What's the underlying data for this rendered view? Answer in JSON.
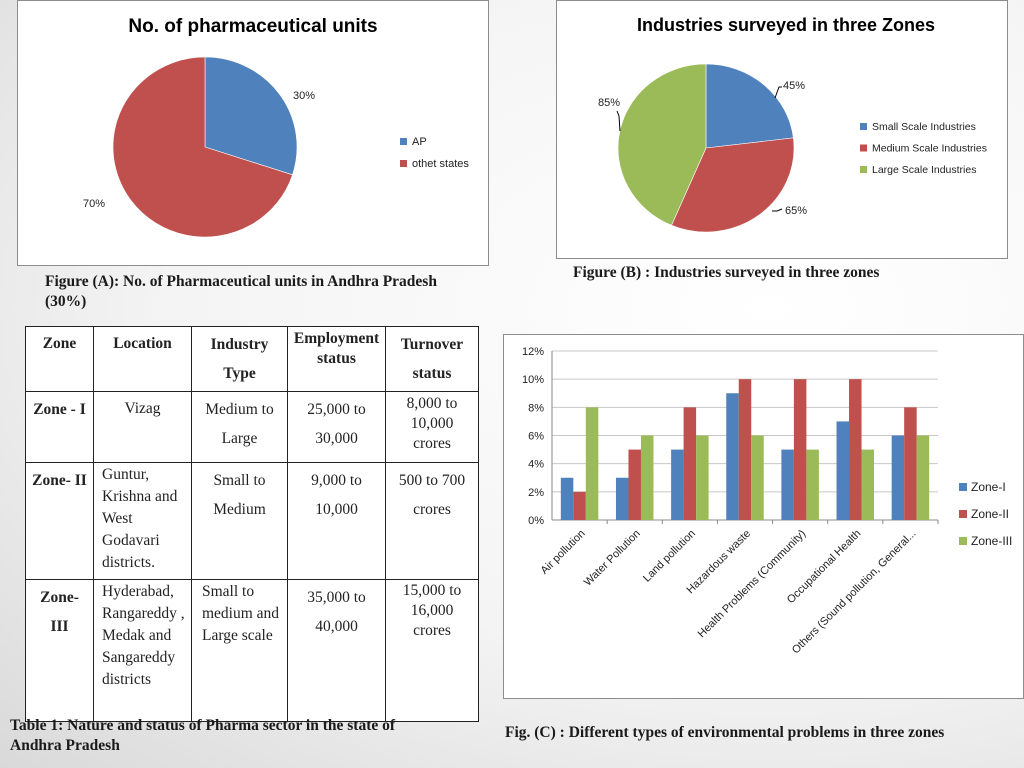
{
  "chart_data": [
    {
      "type": "pie",
      "title": "No. of pharmaceutical units",
      "categories": [
        "AP",
        "othet states"
      ],
      "values": [
        30,
        70
      ],
      "data_labels": [
        "30%",
        "70%"
      ],
      "colors": [
        "#4f81bd",
        "#c0504d"
      ],
      "legend": "right"
    },
    {
      "type": "pie",
      "title": "Industries surveyed in three Zones",
      "categories": [
        "Small Scale Industries",
        "Medium Scale Industries",
        "Large Scale Industries"
      ],
      "values": [
        45,
        65,
        85
      ],
      "data_labels": [
        "45%",
        "65%",
        "85%"
      ],
      "colors": [
        "#4f81bd",
        "#c0504d",
        "#9bbb59"
      ],
      "legend": "right"
    },
    {
      "type": "bar",
      "title": "",
      "categories": [
        "Air pollution",
        "Water Pollution",
        "Land pollution",
        "Hazardous waste",
        "Health Problems (Community)",
        "Occupational Health",
        "Others (Sound pollution, General..."
      ],
      "series": [
        {
          "name": "Zone-I",
          "values": [
            3,
            3,
            5,
            9,
            5,
            7,
            6
          ],
          "color": "#4f81bd"
        },
        {
          "name": "Zone-II",
          "values": [
            2,
            5,
            8,
            10,
            10,
            10,
            8
          ],
          "color": "#c0504d"
        },
        {
          "name": "Zone-III",
          "values": [
            8,
            6,
            6,
            6,
            5,
            5,
            6
          ],
          "color": "#9bbb59"
        }
      ],
      "yticks": [
        "0%",
        "2%",
        "4%",
        "6%",
        "8%",
        "10%",
        "12%"
      ],
      "ylim": [
        0,
        12
      ],
      "grid": true,
      "legend": "right"
    }
  ],
  "captions": {
    "fig_a": "Figure (A): No. of Pharmaceutical units in  Andhra Pradesh (30%)",
    "fig_b": "Figure (B) : Industries surveyed in three zones",
    "fig_c": "Fig. (C) : Different types of environmental problems in three zones",
    "table": "Table 1: Nature and status of Pharma sector in the state of Andhra Pradesh"
  },
  "table": {
    "headers": [
      "Zone",
      "Location",
      "Industry Type",
      "Employment status",
      "Turnover status"
    ],
    "rows": [
      [
        "Zone - I",
        "Vizag",
        "Medium to Large",
        "25,000 to 30,000",
        "8,000 to 10,000 crores"
      ],
      [
        "Zone- II",
        "Guntur, Krishna and West Godavari districts.",
        "Small to Medium",
        "9,000 to 10,000",
        "500 to 700 crores"
      ],
      [
        "Zone- III",
        "Hyderabad, Rangareddy , Medak and Sangareddy districts",
        "Small to medium and Large scale",
        "35,000 to 40,000",
        "15,000 to 16,000 crores"
      ]
    ]
  }
}
